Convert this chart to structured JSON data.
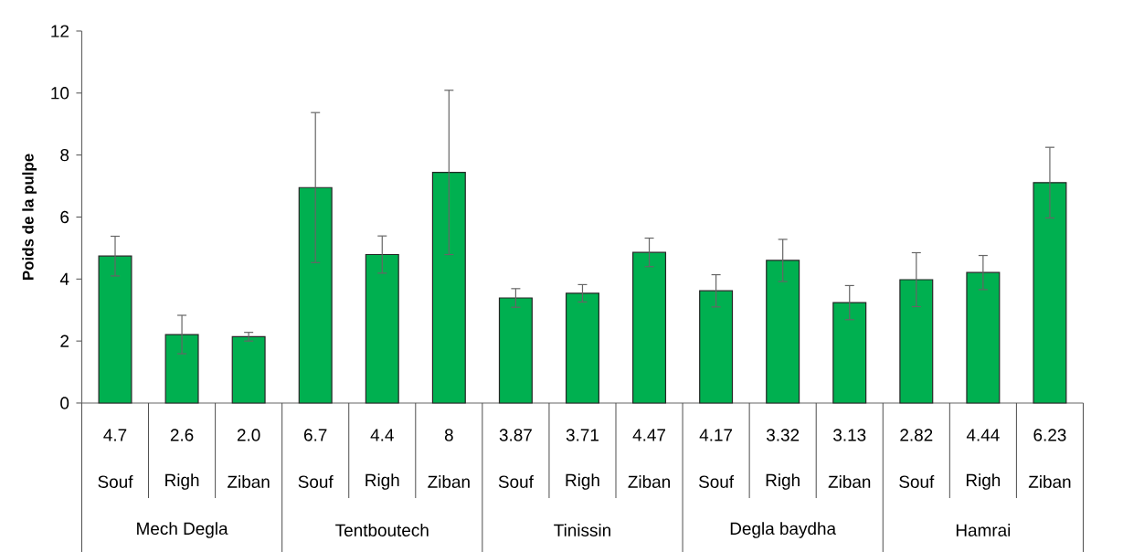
{
  "chart_data": {
    "type": "bar",
    "ylabel": "Poids de la pulpe",
    "categories": [
      "Souf",
      "Righ",
      "Ziban",
      "Souf",
      "Righ",
      "Ziban",
      "Souf",
      "Righ",
      "Ziban",
      "Souf",
      "Righ",
      "Ziban",
      "Souf",
      "Righ",
      "Ziban"
    ],
    "values": [
      4.74,
      2.21,
      2.14,
      6.95,
      4.79,
      7.44,
      3.39,
      3.54,
      4.86,
      3.62,
      4.6,
      3.24,
      3.98,
      4.21,
      7.11
    ],
    "errors": [
      0.64,
      0.62,
      0.14,
      2.42,
      0.6,
      2.65,
      0.3,
      0.28,
      0.46,
      0.52,
      0.68,
      0.55,
      0.87,
      0.55,
      1.14
    ],
    "color": "#00b050",
    "ylim": [
      0,
      12
    ],
    "yticks": [
      0,
      2,
      4,
      6,
      8,
      10,
      12
    ],
    "annotations": [
      "Mech Degla",
      "Tentboutech",
      "Tinissin",
      "Degla baydha",
      "Hamrai",
      "4.7",
      "2.6",
      "2.0",
      "6.7",
      "4.4",
      "8",
      "3.87",
      "3.71",
      "4.47",
      "4.17",
      "3.32",
      "3.13",
      "2.82",
      "4.44",
      "6.23"
    ]
  }
}
